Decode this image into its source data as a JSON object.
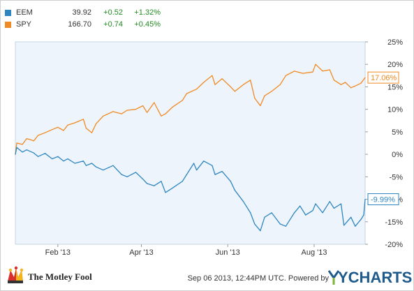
{
  "legend": [
    {
      "ticker": "EEM",
      "price": "39.92",
      "change": "+0.52",
      "pct": "+1.32%",
      "color": "#2e86c1",
      "change_color": "#228b22"
    },
    {
      "ticker": "SPY",
      "price": "166.70",
      "change": "+0.74",
      "pct": "+0.45%",
      "color": "#f08a24",
      "change_color": "#228b22"
    }
  ],
  "footer": {
    "brand_left": "The Motley Fool",
    "timestamp": "Sep 06 2013, 12:44PM UTC.  Powered by",
    "brand_right": "YCHARTS",
    "brand_right_color": "#1e5a8c"
  },
  "chart_data": {
    "type": "line",
    "x_tick_labels": [
      "Feb '13",
      "Apr '13",
      "Jun '13",
      "Aug '13"
    ],
    "x_tick_dates": [
      "2013-02-01",
      "2013-04-01",
      "2013-06-01",
      "2013-08-01"
    ],
    "y_tick_labels": [
      "25%",
      "20%",
      "15%",
      "10%",
      "5%",
      "0%",
      "-5%",
      "-10%",
      "-15%",
      "-20%"
    ],
    "y_ticks": [
      25,
      20,
      15,
      10,
      5,
      0,
      -5,
      -10,
      -15,
      -20
    ],
    "ylim": [
      -20,
      25
    ],
    "xlim": [
      "2013-01-02",
      "2013-09-06"
    ],
    "grid": false,
    "plot_background": "#eef4fb",
    "series": [
      {
        "name": "SPY",
        "color": "#f08a24",
        "end_label": "17.06%",
        "points": [
          [
            "2013-01-02",
            0
          ],
          [
            "2013-01-03",
            2.5
          ],
          [
            "2013-01-07",
            2.2
          ],
          [
            "2013-01-10",
            3.5
          ],
          [
            "2013-01-15",
            3.0
          ],
          [
            "2013-01-18",
            4.2
          ],
          [
            "2013-01-23",
            4.8
          ],
          [
            "2013-01-28",
            5.5
          ],
          [
            "2013-02-01",
            6.0
          ],
          [
            "2013-02-05",
            5.3
          ],
          [
            "2013-02-08",
            6.5
          ],
          [
            "2013-02-13",
            7.0
          ],
          [
            "2013-02-19",
            7.8
          ],
          [
            "2013-02-21",
            5.8
          ],
          [
            "2013-02-25",
            4.8
          ],
          [
            "2013-02-28",
            6.8
          ],
          [
            "2013-03-05",
            8.5
          ],
          [
            "2013-03-12",
            9.5
          ],
          [
            "2013-03-18",
            9.0
          ],
          [
            "2013-03-22",
            9.8
          ],
          [
            "2013-03-28",
            10.0
          ],
          [
            "2013-04-02",
            10.8
          ],
          [
            "2013-04-05",
            9.3
          ],
          [
            "2013-04-10",
            11.5
          ],
          [
            "2013-04-15",
            8.5
          ],
          [
            "2013-04-18",
            9.0
          ],
          [
            "2013-04-23",
            10.5
          ],
          [
            "2013-04-30",
            12.0
          ],
          [
            "2013-05-03",
            13.5
          ],
          [
            "2013-05-10",
            14.5
          ],
          [
            "2013-05-15",
            16.0
          ],
          [
            "2013-05-21",
            17.5
          ],
          [
            "2013-05-23",
            15.5
          ],
          [
            "2013-05-28",
            16.8
          ],
          [
            "2013-06-03",
            15.0
          ],
          [
            "2013-06-06",
            14.0
          ],
          [
            "2013-06-12",
            15.5
          ],
          [
            "2013-06-17",
            16.5
          ],
          [
            "2013-06-20",
            12.5
          ],
          [
            "2013-06-24",
            10.8
          ],
          [
            "2013-06-27",
            13.0
          ],
          [
            "2013-07-02",
            14.0
          ],
          [
            "2013-07-08",
            15.5
          ],
          [
            "2013-07-12",
            17.5
          ],
          [
            "2013-07-18",
            18.5
          ],
          [
            "2013-07-24",
            18.0
          ],
          [
            "2013-07-31",
            18.3
          ],
          [
            "2013-08-02",
            20.0
          ],
          [
            "2013-08-07",
            18.5
          ],
          [
            "2013-08-12",
            18.8
          ],
          [
            "2013-08-15",
            16.5
          ],
          [
            "2013-08-20",
            15.5
          ],
          [
            "2013-08-23",
            16.0
          ],
          [
            "2013-08-27",
            14.8
          ],
          [
            "2013-08-30",
            15.2
          ],
          [
            "2013-09-03",
            15.8
          ],
          [
            "2013-09-06",
            17.06
          ]
        ]
      },
      {
        "name": "EEM",
        "color": "#2e86c1",
        "end_label": "-9.99%",
        "points": [
          [
            "2013-01-02",
            0
          ],
          [
            "2013-01-03",
            1.5
          ],
          [
            "2013-01-07",
            0.5
          ],
          [
            "2013-01-10",
            1.0
          ],
          [
            "2013-01-15",
            0.3
          ],
          [
            "2013-01-18",
            -0.5
          ],
          [
            "2013-01-23",
            0.2
          ],
          [
            "2013-01-28",
            -1.0
          ],
          [
            "2013-02-01",
            -0.5
          ],
          [
            "2013-02-05",
            -1.5
          ],
          [
            "2013-02-08",
            -1.0
          ],
          [
            "2013-02-13",
            -2.0
          ],
          [
            "2013-02-19",
            -1.5
          ],
          [
            "2013-02-21",
            -2.5
          ],
          [
            "2013-02-25",
            -2.0
          ],
          [
            "2013-02-28",
            -2.8
          ],
          [
            "2013-03-05",
            -3.5
          ],
          [
            "2013-03-12",
            -2.5
          ],
          [
            "2013-03-18",
            -4.5
          ],
          [
            "2013-03-22",
            -5.0
          ],
          [
            "2013-03-28",
            -4.0
          ],
          [
            "2013-04-02",
            -5.5
          ],
          [
            "2013-04-05",
            -6.5
          ],
          [
            "2013-04-10",
            -7.0
          ],
          [
            "2013-04-15",
            -6.0
          ],
          [
            "2013-04-18",
            -8.5
          ],
          [
            "2013-04-23",
            -7.5
          ],
          [
            "2013-04-30",
            -6.0
          ],
          [
            "2013-05-03",
            -4.5
          ],
          [
            "2013-05-08",
            -2.0
          ],
          [
            "2013-05-10",
            -3.5
          ],
          [
            "2013-05-15",
            -1.5
          ],
          [
            "2013-05-21",
            -2.5
          ],
          [
            "2013-05-23",
            -4.5
          ],
          [
            "2013-05-28",
            -3.8
          ],
          [
            "2013-06-03",
            -6.0
          ],
          [
            "2013-06-06",
            -8.0
          ],
          [
            "2013-06-12",
            -10.5
          ],
          [
            "2013-06-17",
            -13.0
          ],
          [
            "2013-06-20",
            -15.5
          ],
          [
            "2013-06-24",
            -17.0
          ],
          [
            "2013-06-27",
            -14.0
          ],
          [
            "2013-07-02",
            -13.0
          ],
          [
            "2013-07-08",
            -15.5
          ],
          [
            "2013-07-12",
            -16.0
          ],
          [
            "2013-07-18",
            -13.0
          ],
          [
            "2013-07-22",
            -11.5
          ],
          [
            "2013-07-26",
            -13.5
          ],
          [
            "2013-07-31",
            -12.5
          ],
          [
            "2013-08-02",
            -11.0
          ],
          [
            "2013-08-07",
            -13.0
          ],
          [
            "2013-08-12",
            -10.5
          ],
          [
            "2013-08-15",
            -12.0
          ],
          [
            "2013-08-20",
            -11.0
          ],
          [
            "2013-08-22",
            -15.8
          ],
          [
            "2013-08-27",
            -14.0
          ],
          [
            "2013-08-30",
            -16.0
          ],
          [
            "2013-09-03",
            -14.5
          ],
          [
            "2013-09-05",
            -13.5
          ],
          [
            "2013-09-06",
            -9.99
          ]
        ]
      }
    ]
  }
}
